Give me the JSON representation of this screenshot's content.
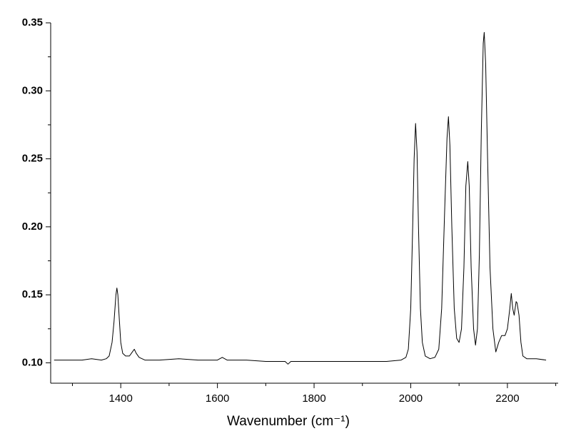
{
  "chart_data": {
    "type": "line",
    "xlabel": "Wavenumber (cm⁻¹)",
    "color": "#000000",
    "xlim": [
      1255,
      2305
    ],
    "ylim": [
      0.085,
      0.35
    ],
    "xticks": [
      1400,
      1600,
      1800,
      2000,
      2200
    ],
    "x_minor_ticks": [
      1300,
      1500,
      1700,
      1900,
      2100,
      2300
    ],
    "yticks": [
      {
        "value": 0.1,
        "label": "0.10"
      },
      {
        "value": 0.15,
        "label": "0.15"
      },
      {
        "value": 0.2,
        "label": "0.20"
      },
      {
        "value": 0.25,
        "label": "0.25"
      },
      {
        "value": 0.3,
        "label": "0.30"
      },
      {
        "value": 0.35,
        "label": "0.35"
      }
    ],
    "y_minor_ticks": [
      0.125,
      0.175,
      0.225,
      0.275,
      0.325
    ],
    "grid": false,
    "x": [
      1262,
      1280,
      1300,
      1320,
      1340,
      1360,
      1370,
      1376,
      1382,
      1386,
      1390,
      1392,
      1394,
      1397,
      1400,
      1404,
      1410,
      1418,
      1424,
      1428,
      1432,
      1438,
      1450,
      1480,
      1520,
      1560,
      1600,
      1610,
      1620,
      1660,
      1700,
      1740,
      1746,
      1752,
      1800,
      1850,
      1900,
      1950,
      1980,
      1990,
      1995,
      2000,
      2004,
      2007,
      2010,
      2013,
      2016,
      2020,
      2024,
      2030,
      2040,
      2050,
      2058,
      2064,
      2070,
      2075,
      2078,
      2081,
      2085,
      2090,
      2095,
      2100,
      2105,
      2110,
      2114,
      2118,
      2121,
      2125,
      2130,
      2134,
      2138,
      2142,
      2146,
      2150,
      2152,
      2155,
      2159,
      2164,
      2170,
      2176,
      2182,
      2188,
      2195,
      2200,
      2205,
      2208,
      2211,
      2214,
      2218,
      2220,
      2224,
      2228,
      2232,
      2240,
      2260,
      2280
    ],
    "values": [
      0.102,
      0.102,
      0.102,
      0.102,
      0.103,
      0.102,
      0.103,
      0.105,
      0.115,
      0.13,
      0.15,
      0.155,
      0.15,
      0.132,
      0.115,
      0.107,
      0.105,
      0.105,
      0.108,
      0.11,
      0.107,
      0.104,
      0.102,
      0.102,
      0.103,
      0.102,
      0.102,
      0.104,
      0.102,
      0.102,
      0.101,
      0.101,
      0.099,
      0.101,
      0.101,
      0.101,
      0.101,
      0.101,
      0.102,
      0.104,
      0.11,
      0.14,
      0.2,
      0.25,
      0.276,
      0.255,
      0.2,
      0.14,
      0.115,
      0.105,
      0.103,
      0.104,
      0.11,
      0.14,
      0.21,
      0.265,
      0.281,
      0.26,
      0.2,
      0.14,
      0.118,
      0.115,
      0.125,
      0.17,
      0.23,
      0.248,
      0.23,
      0.17,
      0.125,
      0.113,
      0.125,
      0.18,
      0.27,
      0.335,
      0.343,
      0.32,
      0.25,
      0.17,
      0.125,
      0.108,
      0.115,
      0.12,
      0.12,
      0.125,
      0.14,
      0.151,
      0.14,
      0.135,
      0.145,
      0.144,
      0.135,
      0.115,
      0.105,
      0.103,
      0.103,
      0.102
    ]
  }
}
